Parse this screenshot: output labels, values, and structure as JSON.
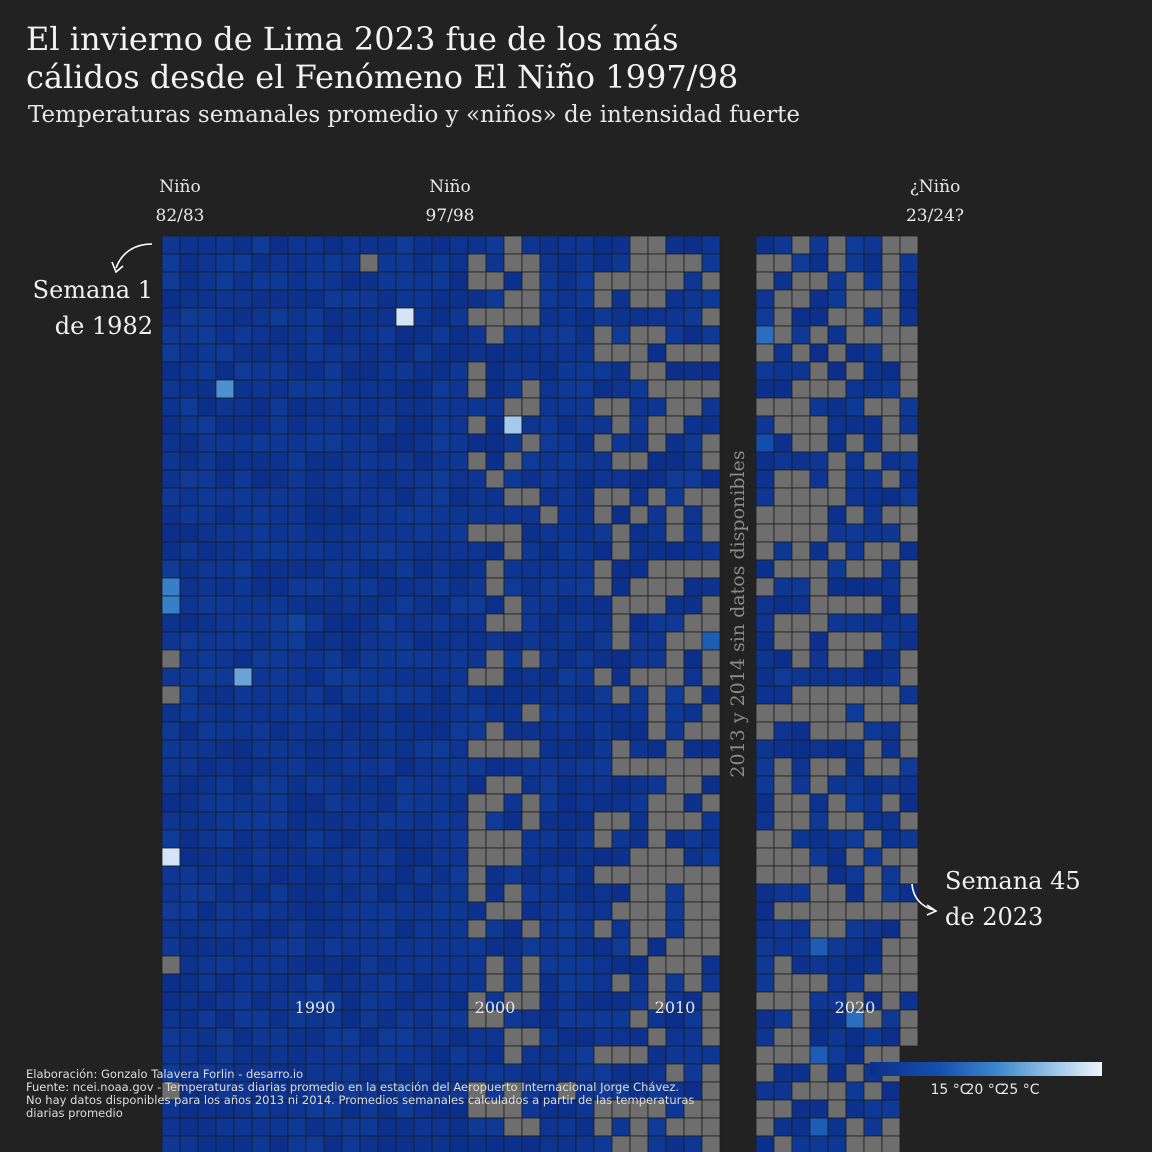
{
  "header": {
    "title_line1": "El invierno de Lima 2023 fue de los más",
    "title_line2": "cálidos desde el Fenómeno El Niño 1997/98",
    "subtitle": "Temperaturas semanales promedio y «niños» de intensidad fuerte"
  },
  "annotations": {
    "nino1_line1": "Niño",
    "nino1_line2": "82/83",
    "nino2_line1": "Niño",
    "nino2_line2": "97/98",
    "nino3_line1": "¿Niño",
    "nino3_line2": "23/24?",
    "start_line1": "Semana 1",
    "start_line2": "de 1982",
    "end_line1": "Semana 45",
    "end_line2": "de 2023",
    "gap": "2013 y 2014 sin datos disponibles"
  },
  "colors": {
    "background": "#222222",
    "missing": "#6e6e6e",
    "scale": [
      "#0b2f8a",
      "#1550b0",
      "#3d88cc",
      "#9ec7ea",
      "#eef3fb"
    ]
  },
  "chart_data": {
    "type": "heatmap",
    "x": "year",
    "y": "week",
    "years": [
      1982,
      1983,
      1984,
      1985,
      1986,
      1987,
      1988,
      1989,
      1990,
      1991,
      1992,
      1993,
      1994,
      1995,
      1996,
      1997,
      1998,
      1999,
      2000,
      2001,
      2002,
      2003,
      2004,
      2005,
      2006,
      2007,
      2008,
      2009,
      2010,
      2011,
      2012,
      2015,
      2016,
      2017,
      2018,
      2019,
      2020,
      2021,
      2022,
      2023
    ],
    "weeks": [
      1,
      52
    ],
    "missing_years": [
      2013,
      2014
    ],
    "last_cell": "Semana 45 de 2023",
    "x_ticks": [
      "1990",
      "2000",
      "2010",
      "2020"
    ],
    "colorbar": {
      "unit": "°C",
      "ticks": [
        "15 °C",
        "20 °C",
        "25 °C"
      ]
    },
    "highlight_cells": [
      {
        "year": 1995,
        "week": 5,
        "value": 27
      },
      {
        "year": 2001,
        "week": 11,
        "value": 25
      },
      {
        "year": 1982,
        "week": 35,
        "value": 27
      },
      {
        "year": 1986,
        "week": 25,
        "value": 23
      },
      {
        "year": 1985,
        "week": 9,
        "value": 22
      },
      {
        "year": 1982,
        "week": 20,
        "value": 21
      },
      {
        "year": 1982,
        "week": 21,
        "value": 21
      },
      {
        "year": 2015,
        "week": 6,
        "value": 20
      },
      {
        "year": 2015,
        "week": 12,
        "value": 18
      },
      {
        "year": 2012,
        "week": 23,
        "value": 19
      },
      {
        "year": 2018,
        "week": 40,
        "value": 19
      },
      {
        "year": 2018,
        "week": 46,
        "value": 19
      },
      {
        "year": 2018,
        "week": 50,
        "value": 19
      },
      {
        "year": 2020,
        "week": 44,
        "value": 20
      },
      {
        "year": 1989,
        "week": 22,
        "value": 17
      },
      {
        "year": 1987,
        "week": 3,
        "value": 16
      },
      {
        "year": 1992,
        "week": 4,
        "value": 16
      },
      {
        "year": 1991,
        "week": 4,
        "value": 16
      }
    ]
  },
  "footer": {
    "credit": "Elaboración: Gonzalo Talavera Forlin - desarro.io",
    "source": "Fuente: ncei.noaa.gov - Temperaturas diarias promedio en la estación del Aeropuerto Internacional Jorge Chávez.",
    "note1": "No hay datos disponibles para los años 2013 ni 2014. Promedios semanales calculados a partir de las temperaturas",
    "note2": "diarias promedio"
  }
}
